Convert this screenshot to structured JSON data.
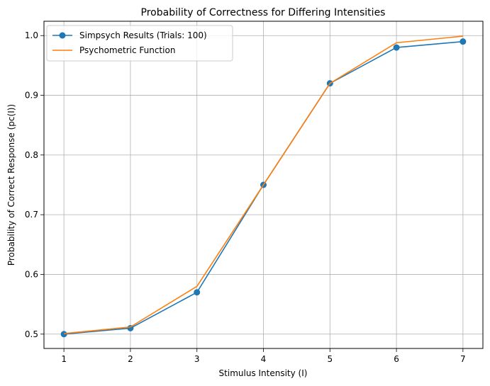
{
  "chart_data": {
    "type": "line",
    "title": "Probability of Correctness for Differing Intensities",
    "xlabel": "Stimulus Intensity (I)",
    "ylabel": "Probability of Correct Response (pc(I))",
    "xlim": [
      0.7,
      7.3
    ],
    "ylim": [
      0.476,
      1.024
    ],
    "xticks": [
      1,
      2,
      3,
      4,
      5,
      6,
      7
    ],
    "yticks": [
      0.5,
      0.6,
      0.7,
      0.8,
      0.9,
      1.0
    ],
    "ytick_labels": [
      "0.5",
      "0.6",
      "0.7",
      "0.8",
      "0.9",
      "1.0"
    ],
    "grid": true,
    "legend_position": "top-left",
    "series": [
      {
        "name": "Simpsych Results (Trials: 100)",
        "x": [
          1,
          2,
          3,
          4,
          5,
          6,
          7
        ],
        "y": [
          0.5,
          0.51,
          0.57,
          0.75,
          0.92,
          0.98,
          0.99
        ],
        "color": "#1f77b4",
        "marker": "circle"
      },
      {
        "name": "Psychometric Function",
        "x": [
          1,
          2,
          3,
          4,
          5,
          6,
          7
        ],
        "y": [
          0.501,
          0.512,
          0.58,
          0.75,
          0.92,
          0.988,
          0.999
        ],
        "color": "#ff7f0e",
        "marker": "none"
      }
    ]
  }
}
